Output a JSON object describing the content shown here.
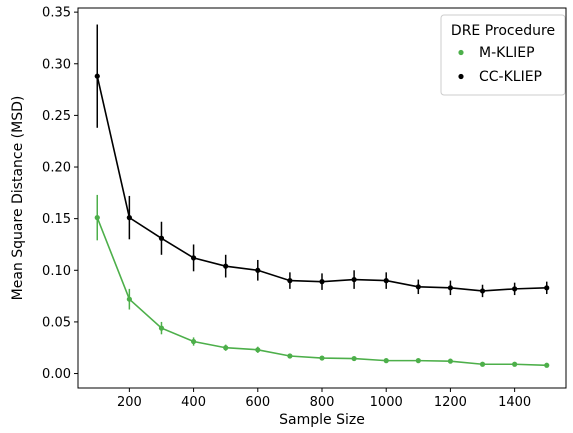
{
  "chart_data": {
    "type": "line",
    "title": "",
    "xlabel": "Sample Size",
    "ylabel": "Mean Square Distance (MSD)",
    "xlim": [
      40,
      1560
    ],
    "ylim": [
      -0.014,
      0.354
    ],
    "xticks": [
      200,
      400,
      600,
      800,
      1000,
      1200,
      1400
    ],
    "xtick_labels": [
      "200",
      "400",
      "600",
      "800",
      "1000",
      "1200",
      "1400"
    ],
    "yticks": [
      0.0,
      0.05,
      0.1,
      0.15,
      0.2,
      0.25,
      0.3,
      0.35
    ],
    "ytick_labels": [
      "0.00",
      "0.05",
      "0.10",
      "0.15",
      "0.20",
      "0.25",
      "0.30",
      "0.35"
    ],
    "grid": false,
    "legend": {
      "title": "DRE Procedure",
      "placement": "top-right"
    },
    "x": [
      100,
      200,
      300,
      400,
      500,
      600,
      700,
      800,
      900,
      1000,
      1100,
      1200,
      1300,
      1400,
      1500
    ],
    "series": [
      {
        "name": "M-KLIEP",
        "color": "#4daf4a",
        "values": [
          0.151,
          0.072,
          0.044,
          0.031,
          0.025,
          0.023,
          0.017,
          0.015,
          0.0145,
          0.0125,
          0.0125,
          0.012,
          0.009,
          0.009,
          0.008
        ],
        "errors": [
          0.022,
          0.01,
          0.006,
          0.004,
          0.003,
          0.003,
          0.002,
          0.002,
          0.002,
          0.001,
          0.001,
          0.001,
          0.001,
          0.001,
          0.001
        ]
      },
      {
        "name": "CC-KLIEP",
        "color": "#000000",
        "values": [
          0.288,
          0.151,
          0.131,
          0.112,
          0.104,
          0.1,
          0.09,
          0.089,
          0.091,
          0.09,
          0.084,
          0.083,
          0.08,
          0.082,
          0.083
        ],
        "errors": [
          0.05,
          0.021,
          0.016,
          0.013,
          0.011,
          0.01,
          0.008,
          0.008,
          0.009,
          0.008,
          0.007,
          0.007,
          0.006,
          0.006,
          0.006
        ]
      }
    ]
  }
}
